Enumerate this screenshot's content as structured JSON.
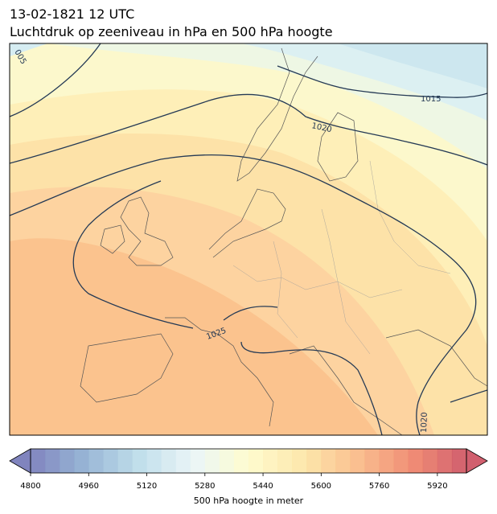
{
  "map": {
    "title": "13-02-1821 12 UTC",
    "subtitle": "Luchtdruk op zeeniveau in hPa en 500 hPa hoogte",
    "contour_labels": [
      "005",
      "1015",
      "1020",
      "1025",
      "1020"
    ],
    "colorbar": {
      "label": "500 hPa hoogte in meter",
      "lim": [
        4800,
        6000
      ],
      "step": 40,
      "ticks": [
        4800,
        4960,
        5120,
        5280,
        5440,
        5600,
        5760,
        5920
      ],
      "colors": [
        "#6a6fb3",
        "#86a9cf",
        "#b6d9e8",
        "#e8f5f6",
        "#fefbc6",
        "#fde39e",
        "#f9b47c",
        "#ee7a5e",
        "#c94355"
      ]
    }
  }
}
